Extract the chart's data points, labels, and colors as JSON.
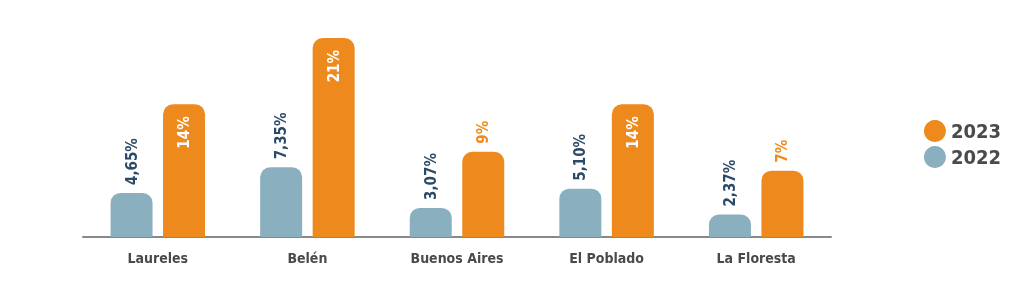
{
  "chart_data": {
    "type": "bar",
    "categories": [
      "Laureles",
      "Belén",
      "Buenos Aires",
      "El Poblado",
      "La Floresta"
    ],
    "series": [
      {
        "name": "2022",
        "color": "#8ab0bf",
        "values": [
          4.65,
          7.35,
          3.07,
          5.1,
          2.37
        ],
        "value_labels": [
          "4,65%",
          "7,35%",
          "3,07%",
          "5,10%",
          "2,37%"
        ]
      },
      {
        "name": "2023",
        "color": "#ee8a1d",
        "values": [
          14,
          21,
          9,
          14,
          7
        ],
        "value_labels": [
          "14%",
          "21%",
          "9%",
          "14%",
          "7%"
        ]
      }
    ],
    "legend": "right"
  }
}
